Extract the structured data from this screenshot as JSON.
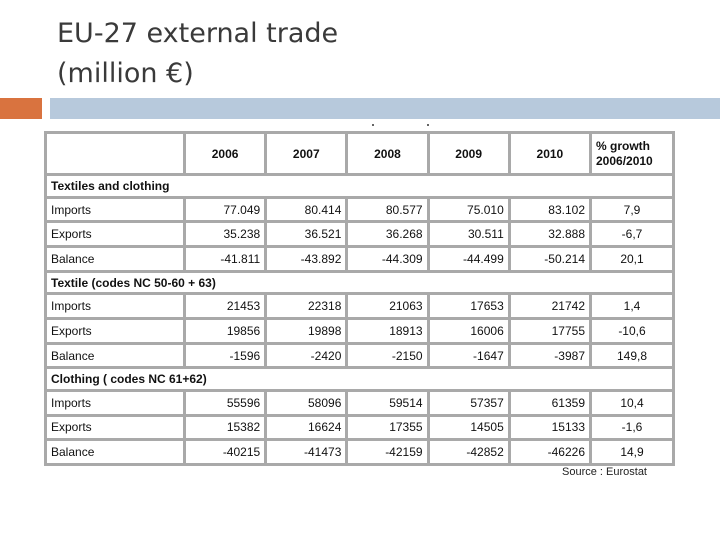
{
  "title": {
    "line1": "EU-27 external trade",
    "line2": "(million €)"
  },
  "colors": {
    "accent": "#d9733f",
    "bar": "#b7c9dc",
    "grid": "#a9a9a9"
  },
  "table": {
    "growth_header_line1": "% growth",
    "growth_header_line2": "2006/2010",
    "years": [
      "2006",
      "2007",
      "2008",
      "2009",
      "2010"
    ],
    "sections": [
      {
        "title": "Textiles and clothing",
        "rows": [
          {
            "label": "Imports",
            "values": [
              "77.049",
              "80.414",
              "80.577",
              "75.010",
              "83.102"
            ],
            "growth": "7,9"
          },
          {
            "label": "Exports",
            "values": [
              "35.238",
              "36.521",
              "36.268",
              "30.511",
              "32.888"
            ],
            "growth": "-6,7"
          },
          {
            "label": "Balance",
            "values": [
              "-41.811",
              "-43.892",
              "-44.309",
              "-44.499",
              "-50.214"
            ],
            "growth": "20,1"
          }
        ]
      },
      {
        "title": "Textile (codes NC 50-60 + 63)",
        "rows": [
          {
            "label": "Imports",
            "values": [
              "21453",
              "22318",
              "21063",
              "17653",
              "21742"
            ],
            "growth": "1,4"
          },
          {
            "label": "Exports",
            "values": [
              "19856",
              "19898",
              "18913",
              "16006",
              "17755"
            ],
            "growth": "-10,6"
          },
          {
            "label": "Balance",
            "values": [
              "-1596",
              "-2420",
              "-2150",
              "-1647",
              "-3987"
            ],
            "growth": "149,8"
          }
        ]
      },
      {
        "title": "Clothing ( codes NC 61+62)",
        "rows": [
          {
            "label": "Imports",
            "values": [
              "55596",
              "58096",
              "59514",
              "57357",
              "61359"
            ],
            "growth": "10,4"
          },
          {
            "label": "Exports",
            "values": [
              "15382",
              "16624",
              "17355",
              "14505",
              "15133"
            ],
            "growth": "-1,6"
          },
          {
            "label": "Balance",
            "values": [
              "-40215",
              "-41473",
              "-42159",
              "-42852",
              "-46226"
            ],
            "growth": "14,9"
          }
        ]
      }
    ]
  },
  "source": "Source : Eurostat"
}
